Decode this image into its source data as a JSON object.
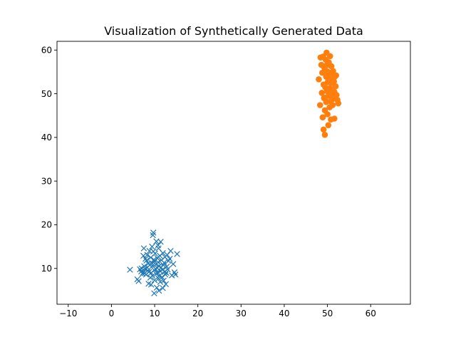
{
  "chart_data": {
    "type": "scatter",
    "title": "Visualization of Synthetically Generated Data",
    "xlabel": "",
    "ylabel": "",
    "xlim": [
      -12.6,
      69.2
    ],
    "ylim": [
      1.8,
      62.0
    ],
    "x_ticks": [
      -10,
      0,
      10,
      20,
      30,
      40,
      50,
      60
    ],
    "y_ticks": [
      10,
      20,
      30,
      40,
      50,
      60
    ],
    "x_tick_labels": [
      "−10",
      "0",
      "10",
      "20",
      "30",
      "40",
      "50",
      "60"
    ],
    "y_tick_labels": [
      "10",
      "20",
      "30",
      "40",
      "50",
      "60"
    ],
    "grid": false,
    "legend": "none",
    "series": [
      {
        "marker": "x",
        "color": "#1f77b4",
        "points": [
          [
            4.3,
            9.7
          ],
          [
            6.0,
            7.5
          ],
          [
            6.3,
            7.1
          ],
          [
            6.6,
            9.8
          ],
          [
            6.9,
            9.3
          ],
          [
            7.0,
            10.0
          ],
          [
            7.2,
            8.8
          ],
          [
            7.4,
            9.1
          ],
          [
            7.4,
            12.9
          ],
          [
            7.5,
            14.6
          ],
          [
            7.6,
            10.5
          ],
          [
            7.8,
            9.9
          ],
          [
            7.9,
            12.2
          ],
          [
            8.0,
            8.6
          ],
          [
            8.1,
            11.8
          ],
          [
            8.3,
            13.1
          ],
          [
            8.3,
            10.2
          ],
          [
            8.4,
            9.5
          ],
          [
            8.6,
            6.5
          ],
          [
            8.7,
            9.2
          ],
          [
            8.8,
            14.0
          ],
          [
            8.9,
            10.8
          ],
          [
            9.0,
            7.9
          ],
          [
            9.1,
            12.5
          ],
          [
            9.2,
            9.0
          ],
          [
            9.3,
            11.2
          ],
          [
            9.4,
            15.0
          ],
          [
            9.5,
            8.3
          ],
          [
            9.5,
            10.6
          ],
          [
            9.6,
            17.6
          ],
          [
            9.7,
            18.2
          ],
          [
            9.8,
            12.0
          ],
          [
            9.9,
            9.6
          ],
          [
            9.9,
            4.3
          ],
          [
            10.0,
            11.6
          ],
          [
            10.0,
            7.3
          ],
          [
            10.1,
            13.4
          ],
          [
            10.2,
            9.9
          ],
          [
            10.3,
            10.9
          ],
          [
            10.4,
            16.2
          ],
          [
            10.4,
            8.7
          ],
          [
            10.5,
            5.6
          ],
          [
            10.6,
            12.4
          ],
          [
            10.6,
            10.1
          ],
          [
            10.7,
            9.1
          ],
          [
            10.8,
            11.4
          ],
          [
            10.8,
            15.3
          ],
          [
            10.9,
            7.7
          ],
          [
            11.0,
            10.5
          ],
          [
            11.0,
            4.9
          ],
          [
            11.1,
            8.3
          ],
          [
            11.2,
            12.9
          ],
          [
            11.3,
            9.4
          ],
          [
            11.3,
            6.9
          ],
          [
            11.4,
            16.1
          ],
          [
            11.5,
            10.2
          ],
          [
            11.6,
            11.9
          ],
          [
            11.7,
            8.0
          ],
          [
            11.8,
            9.7
          ],
          [
            11.9,
            13.5
          ],
          [
            12.0,
            10.8
          ],
          [
            12.1,
            7.2
          ],
          [
            12.2,
            11.3
          ],
          [
            12.3,
            9.2
          ],
          [
            12.4,
            12.6
          ],
          [
            12.5,
            8.6
          ],
          [
            12.6,
            6.4
          ],
          [
            12.8,
            10.4
          ],
          [
            12.9,
            13.1
          ],
          [
            13.0,
            9.8
          ],
          [
            13.2,
            11.7
          ],
          [
            13.5,
            12.2
          ],
          [
            13.7,
            14.0
          ],
          [
            14.0,
            8.4
          ],
          [
            14.3,
            11.0
          ],
          [
            14.6,
            9.1
          ],
          [
            14.8,
            8.6
          ],
          [
            15.2,
            13.3
          ],
          [
            8.5,
            11.1
          ],
          [
            9.7,
            13.9
          ],
          [
            10.9,
            14.6
          ],
          [
            12.7,
            9.0
          ],
          [
            11.9,
            5.5
          ],
          [
            7.7,
            8.9
          ],
          [
            9.2,
            6.3
          ]
        ]
      },
      {
        "marker": "o",
        "color": "#ff7f0e",
        "points": [
          [
            48.0,
            53.3
          ],
          [
            48.3,
            47.4
          ],
          [
            48.4,
            58.3
          ],
          [
            48.6,
            56.6
          ],
          [
            48.7,
            50.2
          ],
          [
            48.8,
            54.8
          ],
          [
            48.9,
            44.6
          ],
          [
            49.0,
            58.5
          ],
          [
            49.1,
            52.1
          ],
          [
            49.1,
            41.8
          ],
          [
            49.2,
            49.0
          ],
          [
            49.3,
            55.9
          ],
          [
            49.4,
            46.2
          ],
          [
            49.4,
            40.6
          ],
          [
            49.5,
            51.5
          ],
          [
            49.6,
            57.8
          ],
          [
            49.7,
            53.9
          ],
          [
            49.7,
            48.1
          ],
          [
            49.8,
            59.4
          ],
          [
            49.9,
            50.6
          ],
          [
            50.0,
            45.3
          ],
          [
            50.0,
            55.1
          ],
          [
            50.1,
            52.7
          ],
          [
            50.2,
            42.8
          ],
          [
            50.3,
            49.6
          ],
          [
            50.3,
            57.2
          ],
          [
            50.4,
            51.2
          ],
          [
            50.5,
            46.9
          ],
          [
            50.6,
            54.3
          ],
          [
            50.6,
            58.6
          ],
          [
            50.7,
            50.0
          ],
          [
            50.8,
            44.1
          ],
          [
            50.8,
            52.4
          ],
          [
            50.9,
            56.3
          ],
          [
            51.0,
            48.6
          ],
          [
            51.0,
            53.6
          ],
          [
            51.1,
            51.0
          ],
          [
            51.2,
            47.4
          ],
          [
            51.3,
            55.2
          ],
          [
            51.4,
            49.3
          ],
          [
            51.5,
            52.8
          ],
          [
            51.6,
            44.3
          ],
          [
            51.6,
            50.4
          ],
          [
            51.7,
            53.9
          ],
          [
            51.8,
            48.9
          ],
          [
            51.9,
            51.7
          ],
          [
            52.0,
            54.2
          ],
          [
            52.1,
            49.7
          ],
          [
            52.3,
            48.6
          ],
          [
            52.5,
            47.8
          ],
          [
            49.5,
            49.1
          ],
          [
            50.4,
            53.0
          ],
          [
            51.3,
            50.9
          ],
          [
            49.9,
            56.6
          ],
          [
            50.7,
            48.3
          ]
        ]
      }
    ]
  }
}
